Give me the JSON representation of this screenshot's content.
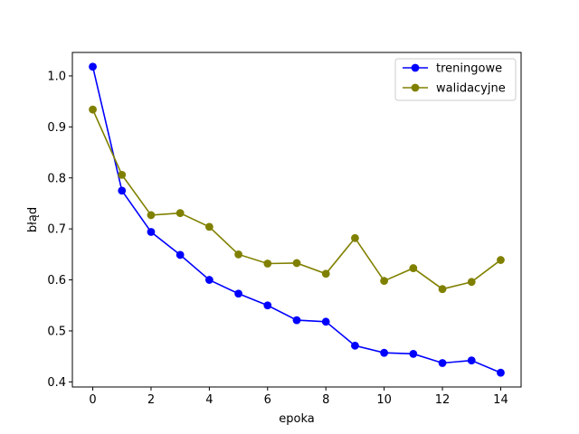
{
  "chart_data": {
    "type": "line",
    "title": "",
    "xlabel": "epoka",
    "ylabel": "błąd",
    "x": [
      0,
      1,
      2,
      3,
      4,
      5,
      6,
      7,
      8,
      9,
      10,
      11,
      12,
      13,
      14
    ],
    "xlim": [
      -0.7,
      14.7
    ],
    "ylim": [
      0.39,
      1.046
    ],
    "xticks": [
      0,
      2,
      4,
      6,
      8,
      10,
      12,
      14
    ],
    "yticks": [
      0.4,
      0.5,
      0.6,
      0.7,
      0.8,
      0.9,
      1.0
    ],
    "ytick_labels": [
      "0.4",
      "0.5",
      "0.6",
      "0.7",
      "0.8",
      "0.9",
      "1.0"
    ],
    "grid": false,
    "legend_position": "top-right",
    "series": [
      {
        "name": "treningowe",
        "color": "#0000ff",
        "marker": "circle",
        "values": [
          1.018,
          0.775,
          0.694,
          0.649,
          0.6,
          0.573,
          0.55,
          0.521,
          0.518,
          0.471,
          0.457,
          0.455,
          0.437,
          0.442,
          0.418
        ]
      },
      {
        "name": "walidacyjne",
        "color": "#808000",
        "marker": "circle",
        "values": [
          0.934,
          0.806,
          0.727,
          0.731,
          0.704,
          0.65,
          0.632,
          0.633,
          0.612,
          0.682,
          0.598,
          0.623,
          0.582,
          0.596,
          0.639
        ]
      }
    ]
  }
}
